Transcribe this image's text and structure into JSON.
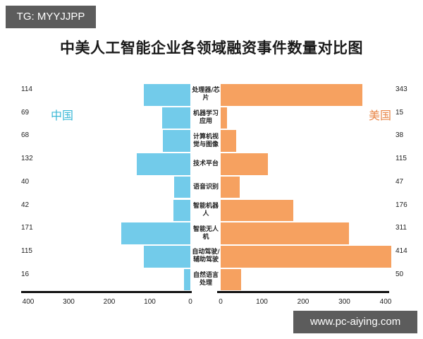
{
  "badge": {
    "text": "TG: MYYJJPP"
  },
  "watermark": {
    "text": "www.pc-aiying.com"
  },
  "legend": {
    "china": "中国",
    "usa": "美国"
  },
  "colors": {
    "china": "#72cbea",
    "usa": "#f6a160",
    "china_text": "#3bb8d6",
    "usa_text": "#e9884a"
  },
  "chart_data": {
    "type": "bar",
    "orientation": "horizontal-butterfly",
    "title": "中美人工智能企业各领域融资事件数量对比图",
    "categories": [
      "处理器/芯片",
      "机器学习应用",
      "计算机视觉与图像",
      "技术平台",
      "语音识别",
      "智能机器人",
      "智能无人机",
      "自动驾驶/辅助驾驶",
      "自然语言处理"
    ],
    "series": [
      {
        "name": "中国",
        "side": "left",
        "values": [
          114,
          69,
          68,
          132,
          40,
          42,
          171,
          115,
          16
        ]
      },
      {
        "name": "美国",
        "side": "right",
        "values": [
          343,
          15,
          38,
          115,
          47,
          176,
          311,
          414,
          50
        ]
      }
    ],
    "xlabel": "",
    "ylabel": "",
    "xlim_left": [
      400,
      0
    ],
    "xlim_right": [
      0,
      400
    ],
    "left_ticks": [
      "400",
      "300",
      "200",
      "100",
      "0"
    ],
    "right_ticks": [
      "0",
      "100",
      "200",
      "300",
      "400"
    ],
    "grid": false,
    "legend_position": "inside-top (中国 left, 美国 right)"
  }
}
